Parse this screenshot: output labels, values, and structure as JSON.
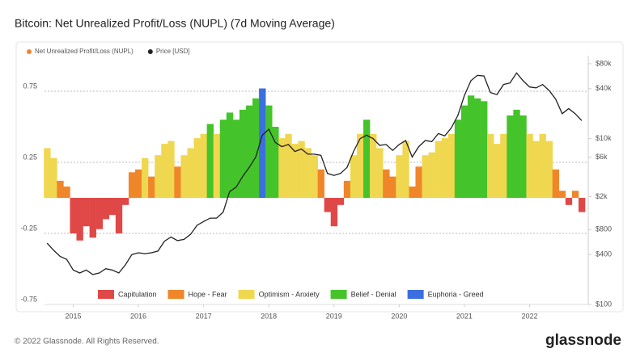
{
  "chart_data": {
    "type": "combo",
    "title": "Bitcoin: Net Unrealized Profit/Loss (NUPL) (7d Moving Average)",
    "footer": "© 2022 Glassnode. All Rights Reserved.",
    "brand": "glassnode",
    "x": [
      2014.6,
      2014.7,
      2014.8,
      2014.9,
      2015.0,
      2015.1,
      2015.2,
      2015.3,
      2015.4,
      2015.5,
      2015.6,
      2015.7,
      2015.8,
      2015.9,
      2016.0,
      2016.1,
      2016.2,
      2016.3,
      2016.4,
      2016.5,
      2016.6,
      2016.7,
      2016.8,
      2016.9,
      2017.0,
      2017.1,
      2017.2,
      2017.3,
      2017.4,
      2017.5,
      2017.6,
      2017.7,
      2017.8,
      2017.9,
      2018.0,
      2018.1,
      2018.2,
      2018.3,
      2018.4,
      2018.5,
      2018.6,
      2018.7,
      2018.8,
      2018.9,
      2019.0,
      2019.1,
      2019.2,
      2019.3,
      2019.4,
      2019.5,
      2019.6,
      2019.7,
      2019.8,
      2019.9,
      2020.0,
      2020.1,
      2020.2,
      2020.3,
      2020.4,
      2020.5,
      2020.6,
      2020.7,
      2020.8,
      2020.9,
      2021.0,
      2021.1,
      2021.2,
      2021.3,
      2021.4,
      2021.5,
      2021.6,
      2021.7,
      2021.8,
      2021.9,
      2022.0,
      2022.1,
      2022.2,
      2022.3,
      2022.4,
      2022.5,
      2022.6,
      2022.7,
      2022.8
    ],
    "xlim": [
      2014.56,
      2022.9
    ],
    "xticks": [
      2015,
      2016,
      2017,
      2018,
      2019,
      2020,
      2021,
      2022
    ],
    "ylim": [
      -0.75,
      1
    ],
    "yticks": [
      -0.75,
      -0.25,
      0.25,
      0.75
    ],
    "y2lim": [
      100,
      100000
    ],
    "y2log": true,
    "y2ticks": [
      {
        "value": 100,
        "label": "$100"
      },
      {
        "value": 400,
        "label": "$400"
      },
      {
        "value": 800,
        "label": "$800"
      },
      {
        "value": 2000,
        "label": "$2k"
      },
      {
        "value": 6000,
        "label": "$6k"
      },
      {
        "value": 10000,
        "label": "$10k"
      },
      {
        "value": 40000,
        "label": "$40k"
      },
      {
        "value": 80000,
        "label": "$80k"
      }
    ],
    "grid": true,
    "series": [
      {
        "name": "Net Unrealized Profit/Loss (NUPL)",
        "color": "#f0862a",
        "type": "bar",
        "values": [
          0.35,
          0.28,
          0.12,
          0.08,
          -0.25,
          -0.3,
          -0.2,
          -0.28,
          -0.22,
          -0.15,
          -0.12,
          -0.25,
          -0.05,
          0.18,
          0.2,
          0.28,
          0.15,
          0.3,
          0.38,
          0.4,
          0.22,
          0.3,
          0.35,
          0.42,
          0.45,
          0.52,
          0.45,
          0.55,
          0.6,
          0.55,
          0.62,
          0.65,
          0.7,
          0.77,
          0.65,
          0.5,
          0.42,
          0.45,
          0.38,
          0.4,
          0.35,
          0.3,
          0.2,
          -0.1,
          -0.2,
          -0.05,
          0.12,
          0.3,
          0.45,
          0.55,
          0.45,
          0.35,
          0.2,
          0.15,
          0.3,
          0.4,
          0.08,
          0.22,
          0.3,
          0.32,
          0.4,
          0.42,
          0.45,
          0.55,
          0.65,
          0.72,
          0.7,
          0.68,
          0.45,
          0.38,
          0.45,
          0.58,
          0.62,
          0.58,
          0.45,
          0.4,
          0.45,
          0.4,
          0.2,
          0.05,
          -0.05,
          0.05,
          -0.1
        ],
        "point_colors": [
          "#f0d750",
          "#f0d750",
          "#f0862a",
          "#f0862a",
          "#e04848",
          "#e04848",
          "#e04848",
          "#e04848",
          "#e04848",
          "#e04848",
          "#e04848",
          "#e04848",
          "#e04848",
          "#f0862a",
          "#f0862a",
          "#f0d750",
          "#f0862a",
          "#f0d750",
          "#f0d750",
          "#f0d750",
          "#f0862a",
          "#f0d750",
          "#f0d750",
          "#f0d750",
          "#f0d750",
          "#44c42a",
          "#f0d750",
          "#44c42a",
          "#44c42a",
          "#44c42a",
          "#44c42a",
          "#44c42a",
          "#44c42a",
          "#3b6ee0",
          "#44c42a",
          "#44c42a",
          "#f0d750",
          "#f0d750",
          "#f0d750",
          "#f0d750",
          "#f0d750",
          "#f0d750",
          "#f0862a",
          "#e04848",
          "#e04848",
          "#e04848",
          "#f0862a",
          "#f0d750",
          "#f0d750",
          "#44c42a",
          "#f0d750",
          "#f0d750",
          "#f0862a",
          "#f0862a",
          "#f0d750",
          "#f0d750",
          "#f0862a",
          "#f0862a",
          "#f0d750",
          "#f0d750",
          "#f0d750",
          "#f0d750",
          "#f0d750",
          "#44c42a",
          "#44c42a",
          "#44c42a",
          "#44c42a",
          "#44c42a",
          "#f0d750",
          "#f0d750",
          "#f0d750",
          "#44c42a",
          "#44c42a",
          "#44c42a",
          "#f0d750",
          "#f0d750",
          "#f0d750",
          "#f0d750",
          "#f0862a",
          "#f0862a",
          "#e04848",
          "#f0862a",
          "#e04848"
        ]
      },
      {
        "name": "Price [USD]",
        "color": "#222222",
        "type": "line",
        "axis": "y2",
        "values": [
          550,
          450,
          380,
          350,
          260,
          240,
          260,
          230,
          240,
          270,
          260,
          240,
          300,
          400,
          420,
          410,
          420,
          440,
          580,
          650,
          590,
          610,
          700,
          900,
          1000,
          1100,
          1100,
          1300,
          2300,
          2600,
          3500,
          4500,
          6000,
          11000,
          13000,
          9000,
          8000,
          8500,
          7000,
          7500,
          6500,
          6500,
          6300,
          3800,
          3600,
          3800,
          4500,
          7000,
          10000,
          11000,
          10000,
          8300,
          8500,
          7200,
          8500,
          9500,
          6000,
          8000,
          9500,
          9200,
          11500,
          10800,
          13500,
          19000,
          33000,
          50000,
          58000,
          57000,
          36000,
          34000,
          45000,
          47000,
          62000,
          50000,
          42000,
          41000,
          45000,
          38000,
          30000,
          20000,
          23000,
          20000,
          16500
        ]
      }
    ],
    "zones": [
      {
        "name": "Capitulation",
        "color": "#e04848"
      },
      {
        "name": "Hope - Fear",
        "color": "#f0862a"
      },
      {
        "name": "Optimism - Anxiety",
        "color": "#f0d750"
      },
      {
        "name": "Belief - Denial",
        "color": "#44c42a"
      },
      {
        "name": "Euphoria - Greed",
        "color": "#3b6ee0"
      }
    ]
  }
}
